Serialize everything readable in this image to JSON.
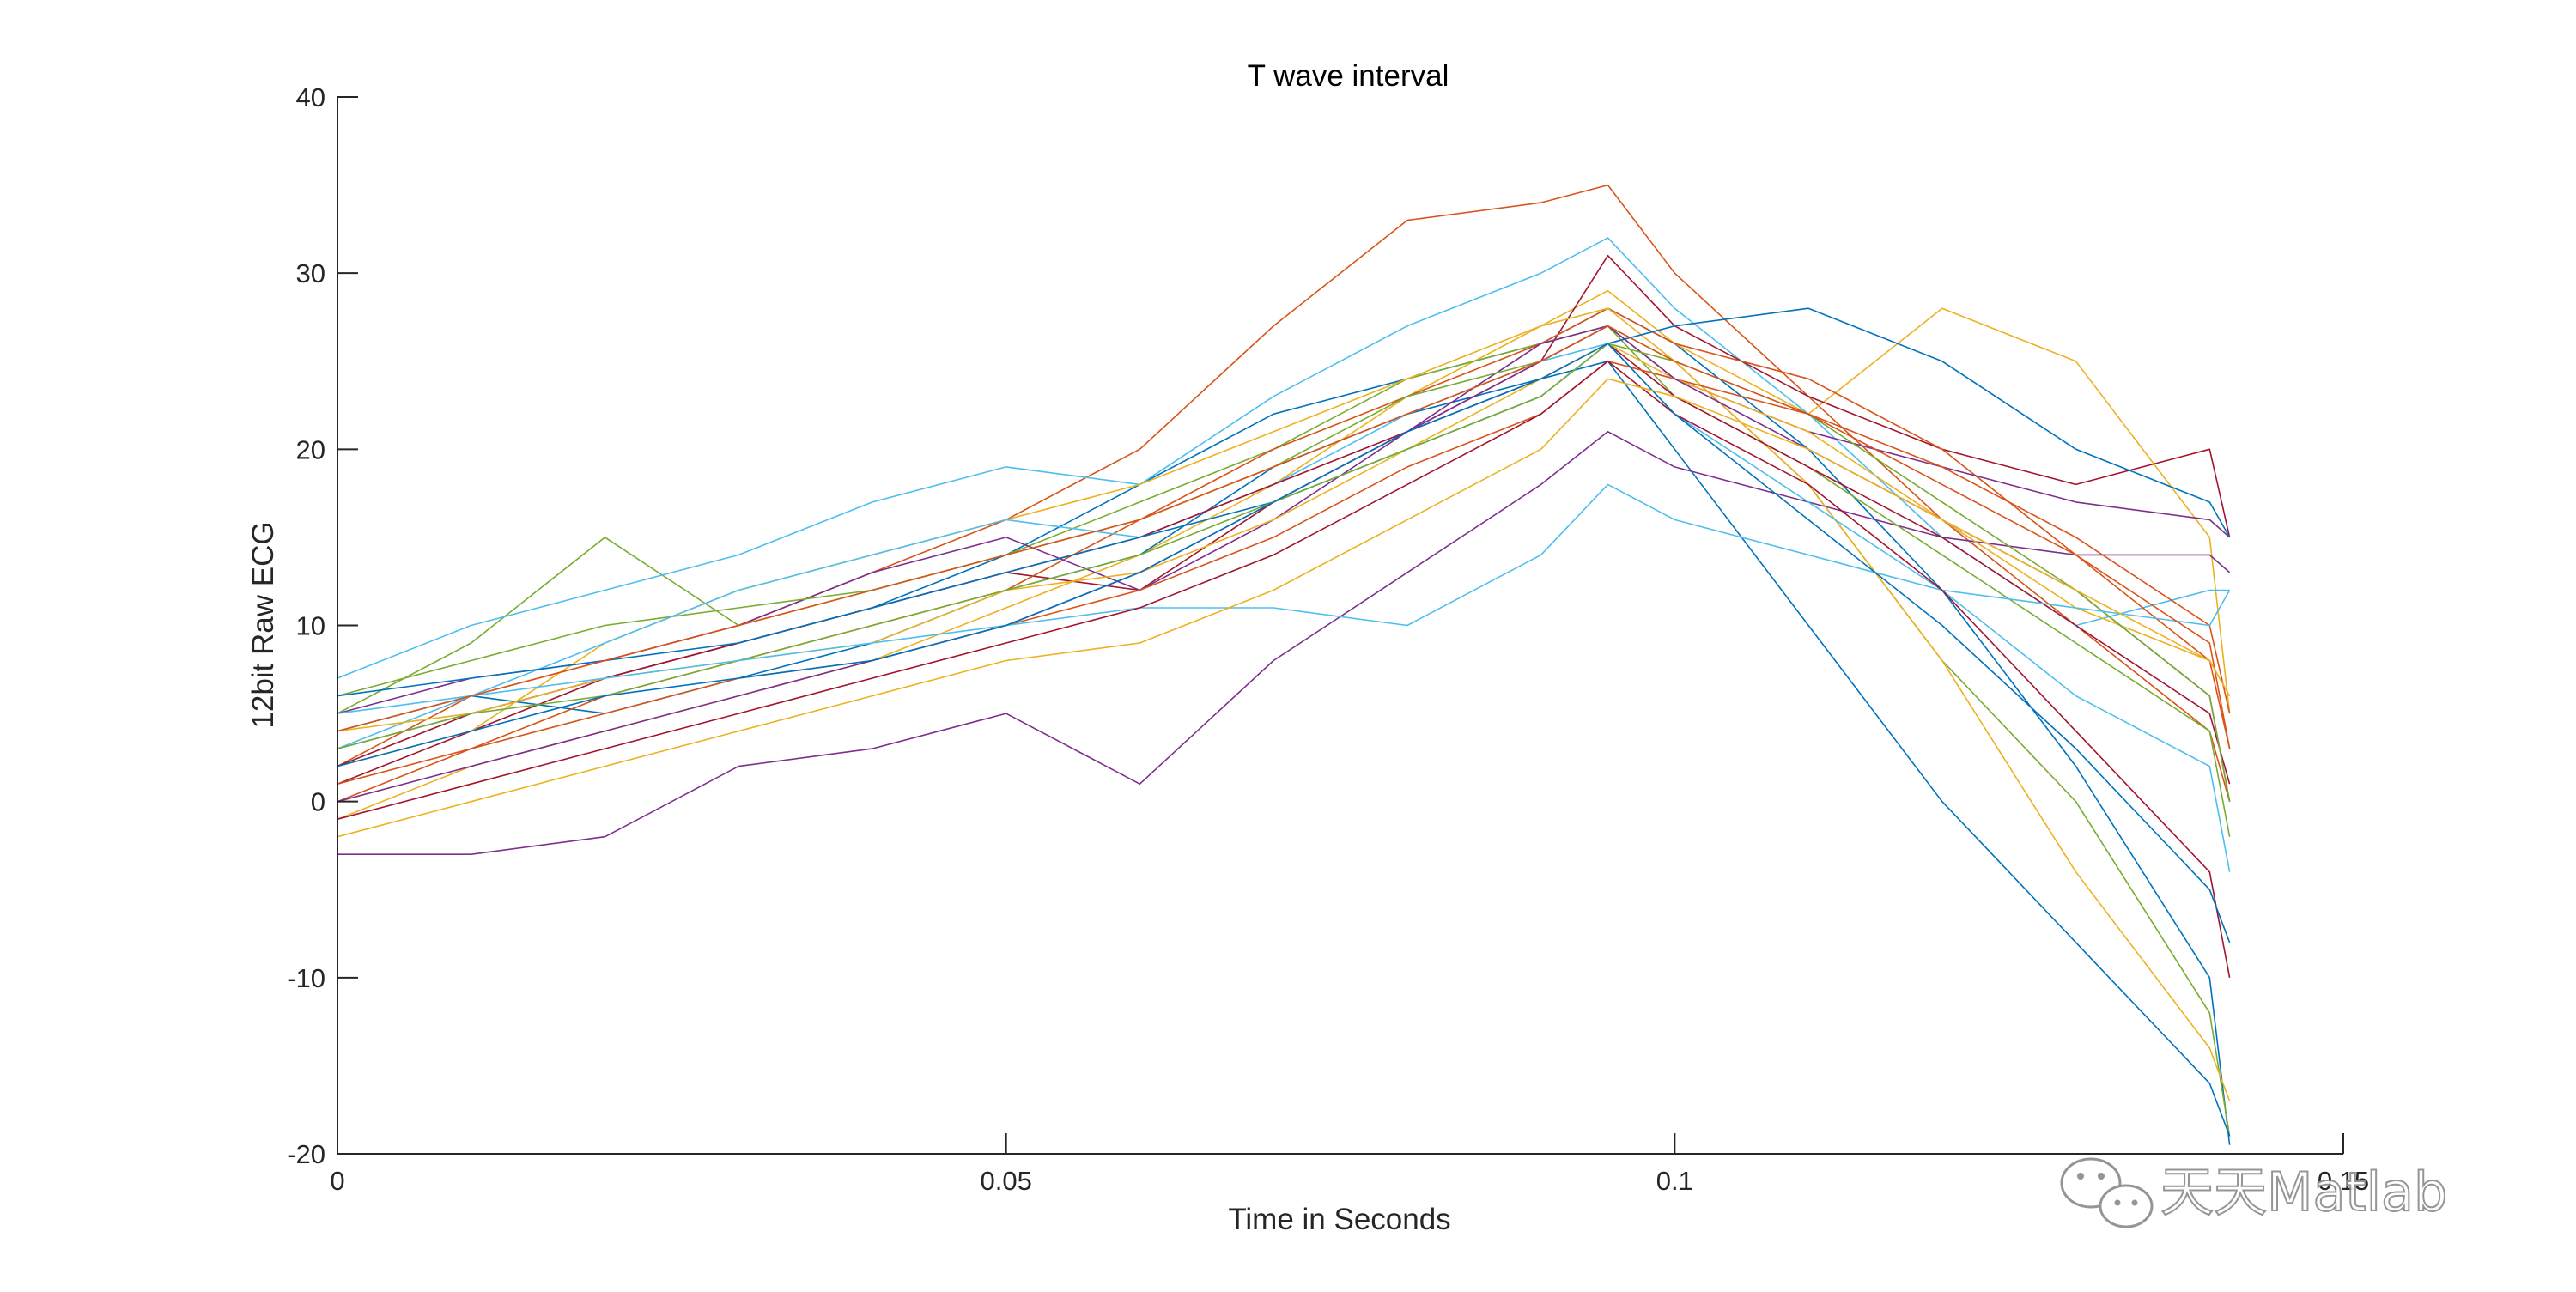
{
  "chart_data": {
    "type": "line",
    "title": "T wave interval",
    "xlabel": "Time in Seconds",
    "ylabel": "12bit Raw ECG",
    "xlim": [
      0,
      0.15
    ],
    "ylim": [
      -20,
      40
    ],
    "xticks": [
      0,
      0.05,
      0.1,
      0.15
    ],
    "xtick_labels": [
      "0",
      "0.05",
      "0.1",
      "0.15"
    ],
    "yticks": [
      -20,
      -10,
      0,
      10,
      20,
      30,
      40
    ],
    "ytick_labels": [
      "-20",
      "-10",
      "0",
      "10",
      "20",
      "30",
      "40"
    ],
    "grid": false,
    "legend": "none",
    "x": [
      0,
      0.01,
      0.02,
      0.03,
      0.04,
      0.05,
      0.06,
      0.07,
      0.08,
      0.09,
      0.095,
      0.1,
      0.11,
      0.12,
      0.13,
      0.14,
      0.1415
    ],
    "series": [
      {
        "color": "#0072BD",
        "values": [
          3,
          5,
          7,
          9,
          11,
          14,
          18,
          22,
          24,
          26,
          28,
          26,
          20,
          12,
          2,
          -10,
          -19.5
        ]
      },
      {
        "color": "#D95319",
        "values": [
          2,
          6,
          8,
          10,
          13,
          16,
          20,
          27,
          33,
          34,
          35,
          30,
          23,
          16,
          10,
          4,
          0
        ]
      },
      {
        "color": "#EDB120",
        "values": [
          -1,
          2,
          4,
          6,
          8,
          11,
          14,
          18,
          23,
          27,
          29,
          26,
          22,
          28,
          25,
          15,
          5
        ]
      },
      {
        "color": "#7E2F8E",
        "values": [
          -3,
          -3,
          -2,
          2,
          3,
          5,
          1,
          8,
          13,
          18,
          21,
          19,
          17,
          15,
          14,
          14,
          13
        ]
      },
      {
        "color": "#77AC30",
        "values": [
          5,
          9,
          15,
          10,
          12,
          14,
          17,
          20,
          24,
          26,
          27,
          25,
          18,
          8,
          0,
          -12,
          -19
        ]
      },
      {
        "color": "#4DBEEE",
        "values": [
          7,
          10,
          12,
          14,
          17,
          19,
          18,
          23,
          27,
          30,
          32,
          28,
          22,
          15,
          10,
          12,
          12
        ]
      },
      {
        "color": "#A2142F",
        "values": [
          1,
          4,
          7,
          9,
          11,
          13,
          12,
          17,
          21,
          25,
          31,
          27,
          23,
          20,
          18,
          20,
          15
        ]
      },
      {
        "color": "#0072BD",
        "values": [
          4,
          6,
          5,
          7,
          9,
          12,
          14,
          19,
          22,
          24,
          25,
          20,
          10,
          0,
          -8,
          -16,
          -19
        ]
      },
      {
        "color": "#D95319",
        "values": [
          0,
          3,
          6,
          8,
          10,
          12,
          16,
          20,
          23,
          26,
          28,
          26,
          24,
          20,
          14,
          8,
          3
        ]
      },
      {
        "color": "#EDB120",
        "values": [
          2,
          4,
          9,
          12,
          14,
          16,
          18,
          21,
          24,
          27,
          28,
          25,
          18,
          8,
          -4,
          -14,
          -17
        ]
      },
      {
        "color": "#7E2F8E",
        "values": [
          5,
          7,
          8,
          10,
          13,
          15,
          12,
          16,
          21,
          26,
          27,
          24,
          21,
          19,
          17,
          16,
          15
        ]
      },
      {
        "color": "#77AC30",
        "values": [
          6,
          8,
          10,
          11,
          12,
          14,
          16,
          19,
          23,
          25,
          27,
          23,
          19,
          14,
          9,
          4,
          -2
        ]
      },
      {
        "color": "#4DBEEE",
        "values": [
          3,
          6,
          9,
          12,
          14,
          16,
          15,
          18,
          22,
          25,
          26,
          22,
          17,
          12,
          6,
          2,
          -4
        ]
      },
      {
        "color": "#A2142F",
        "values": [
          2,
          5,
          7,
          9,
          11,
          13,
          15,
          18,
          21,
          24,
          26,
          23,
          19,
          15,
          10,
          5,
          1
        ]
      },
      {
        "color": "#0072BD",
        "values": [
          6,
          7,
          8,
          9,
          11,
          13,
          15,
          17,
          20,
          23,
          26,
          27,
          28,
          25,
          20,
          17,
          15
        ]
      },
      {
        "color": "#D95319",
        "values": [
          1,
          3,
          5,
          7,
          8,
          10,
          12,
          15,
          19,
          22,
          25,
          24,
          22,
          19,
          15,
          10,
          5
        ]
      },
      {
        "color": "#EDB120",
        "values": [
          4,
          5,
          7,
          8,
          9,
          12,
          13,
          16,
          20,
          24,
          26,
          24,
          21,
          16,
          11,
          8,
          6
        ]
      },
      {
        "color": "#7E2F8E",
        "values": [
          0,
          2,
          4,
          6,
          8,
          10,
          13,
          17,
          21,
          25,
          27,
          24,
          20,
          16,
          12,
          6,
          0
        ]
      },
      {
        "color": "#77AC30",
        "values": [
          3,
          5,
          6,
          8,
          10,
          12,
          14,
          17,
          20,
          23,
          26,
          25,
          22,
          17,
          12,
          6,
          0
        ]
      },
      {
        "color": "#4DBEEE",
        "values": [
          5,
          6,
          7,
          8,
          9,
          10,
          11,
          11,
          10,
          14,
          18,
          16,
          14,
          12,
          11,
          10,
          12
        ]
      },
      {
        "color": "#A2142F",
        "values": [
          -1,
          1,
          3,
          5,
          7,
          9,
          11,
          14,
          18,
          22,
          25,
          22,
          18,
          12,
          4,
          -4,
          -10
        ]
      },
      {
        "color": "#0072BD",
        "values": [
          2,
          4,
          6,
          7,
          8,
          10,
          13,
          17,
          21,
          24,
          26,
          22,
          16,
          10,
          3,
          -5,
          -8
        ]
      },
      {
        "color": "#D95319",
        "values": [
          4,
          6,
          8,
          10,
          12,
          14,
          16,
          19,
          22,
          25,
          27,
          25,
          22,
          18,
          14,
          9,
          3
        ]
      },
      {
        "color": "#EDB120",
        "values": [
          -2,
          0,
          2,
          4,
          6,
          8,
          9,
          12,
          16,
          20,
          24,
          23,
          20,
          16,
          12,
          8,
          6
        ]
      }
    ]
  },
  "watermark": {
    "text": "天天Matlab",
    "icon": "wechat-icon"
  }
}
